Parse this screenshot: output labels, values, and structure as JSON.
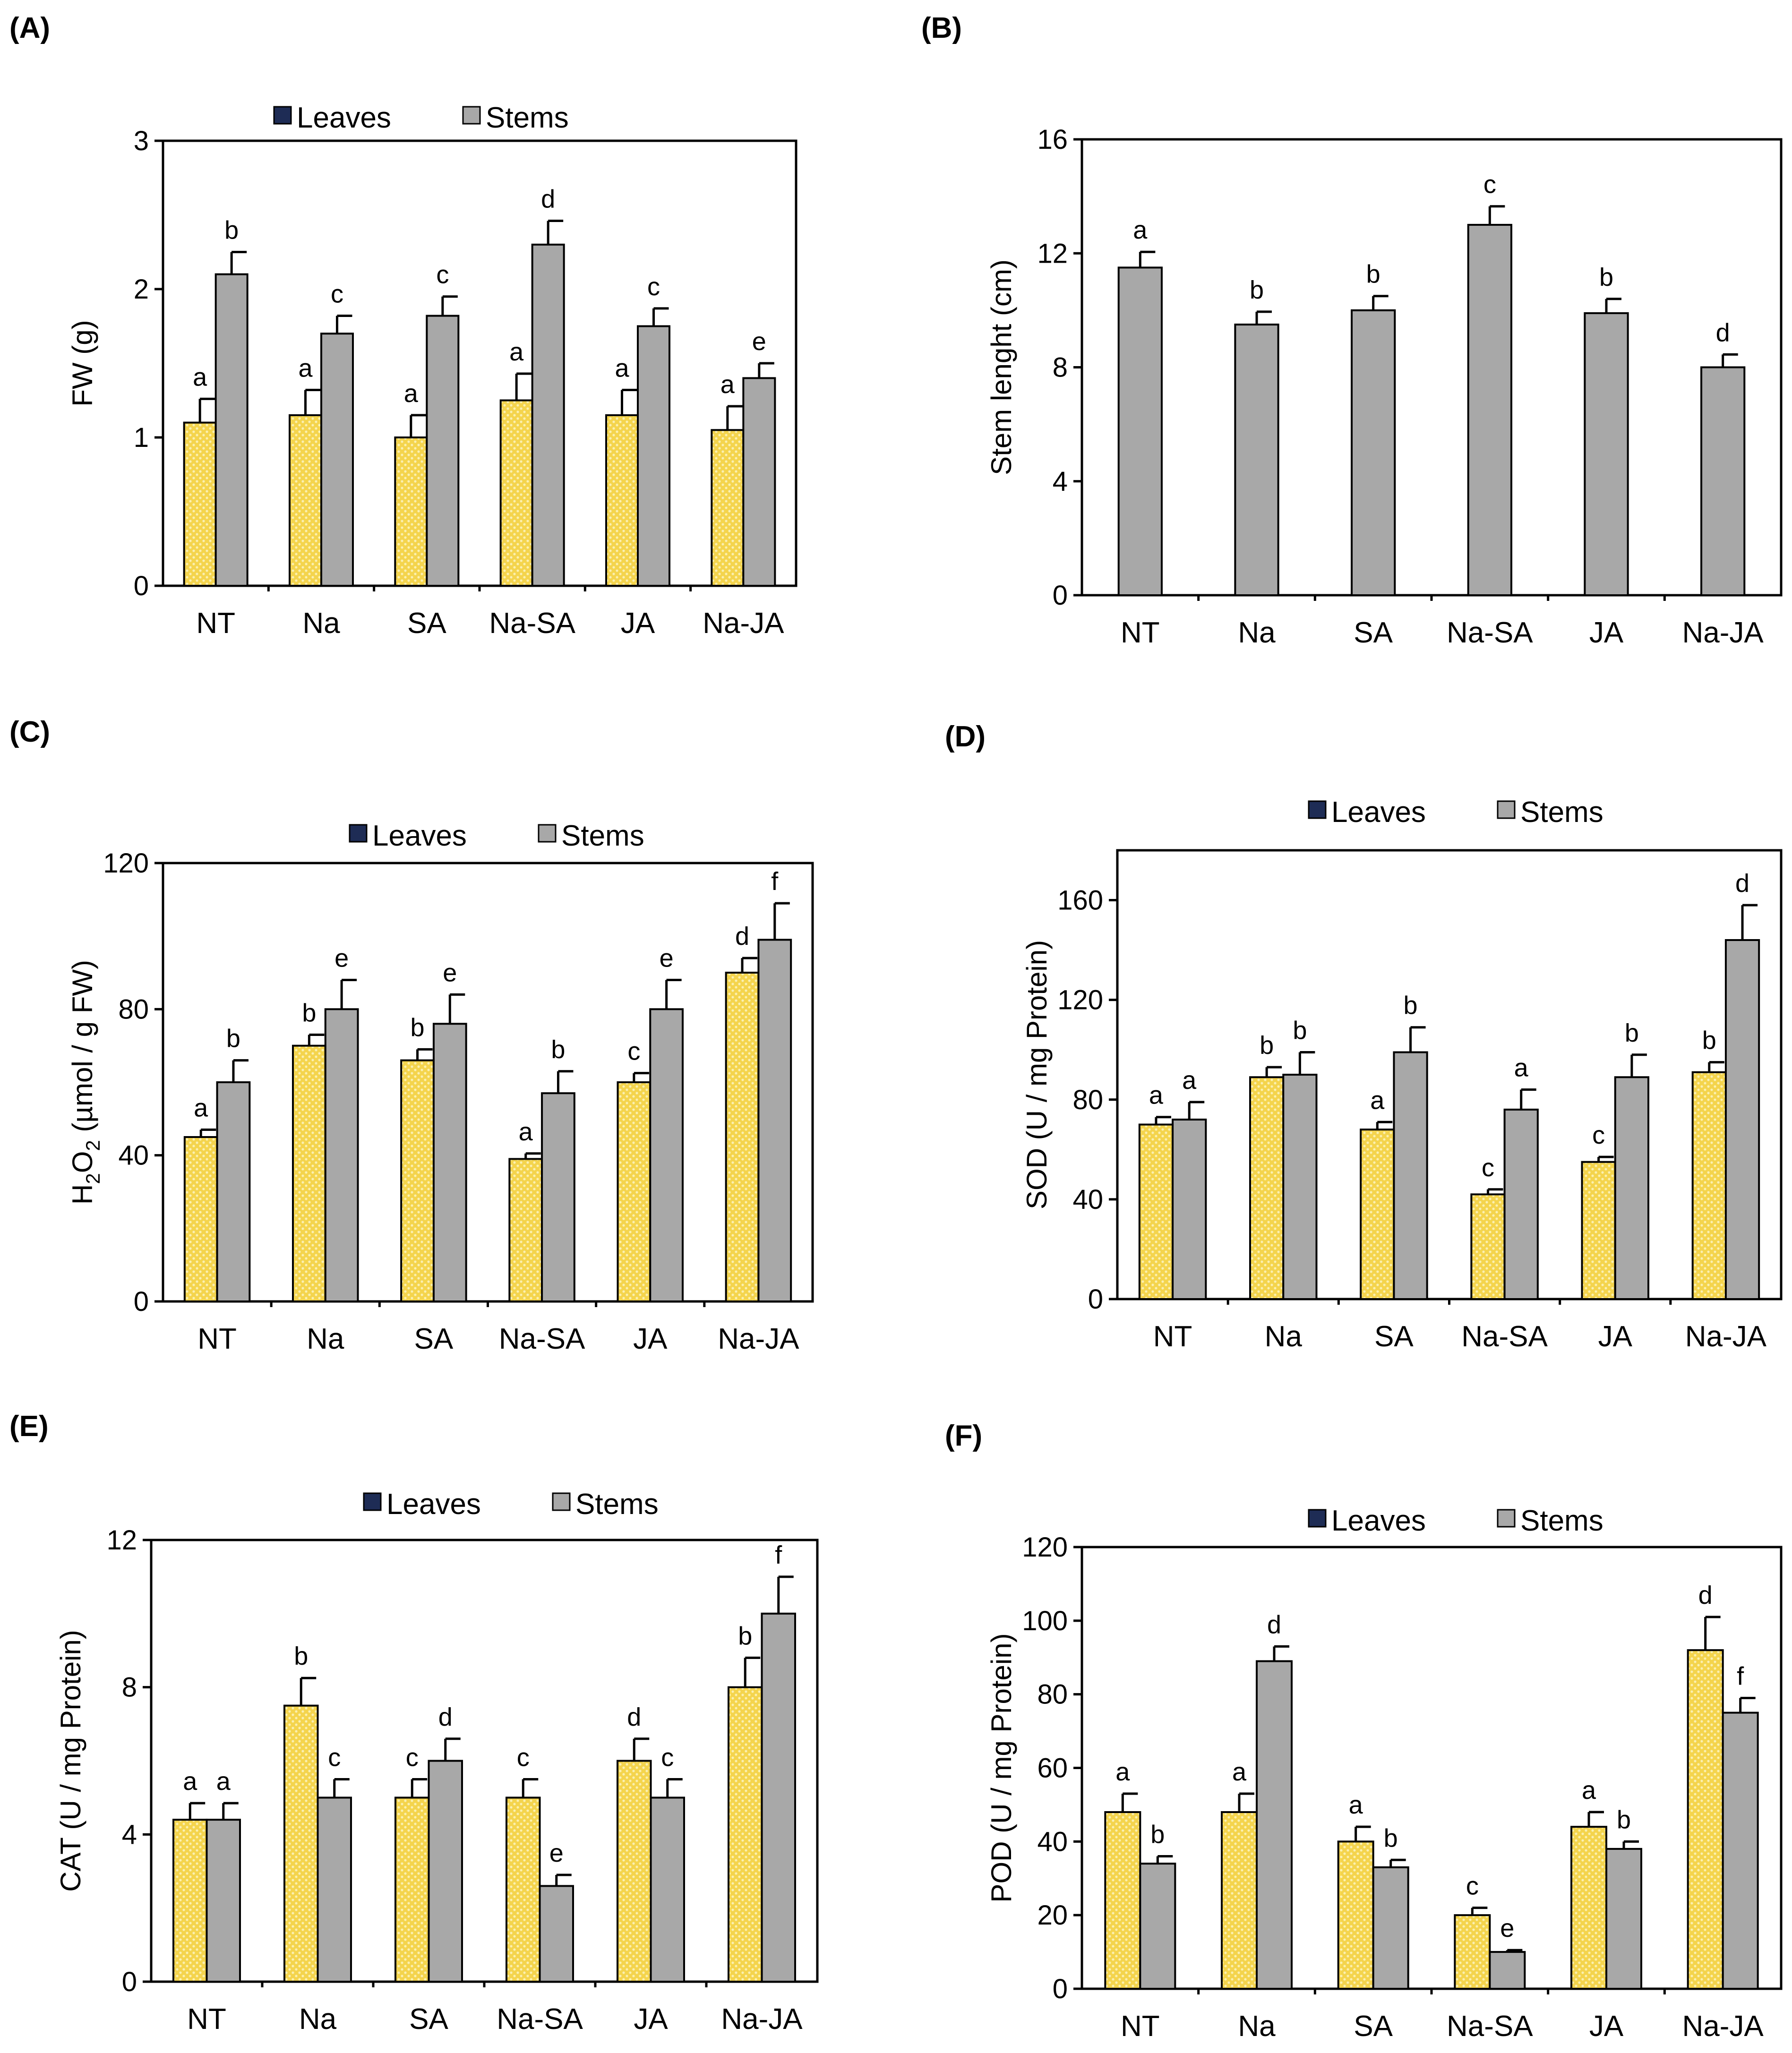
{
  "colors": {
    "leaves_fill": "#f4d44d",
    "leaves_dot": "#fbf0b0",
    "stems_fill": "#a8a8a8",
    "legend_leaves_swatch": "#1e2c55",
    "legend_stems_swatch": "#a8a8a8",
    "axis": "#000000",
    "background": "#ffffff"
  },
  "chart_data": [
    {
      "panel": "(A)",
      "type": "bar",
      "categories": [
        "NT",
        "Na",
        "SA",
        "Na-SA",
        "JA",
        "Na-JA"
      ],
      "ylabel": "FW (g)",
      "ylim": [
        0,
        3
      ],
      "yticks": [
        "0",
        "1",
        "2",
        "3"
      ],
      "legend": [
        "Leaves",
        "Stems"
      ],
      "series": [
        {
          "name": "Leaves",
          "values": [
            1.1,
            1.15,
            1.0,
            1.25,
            1.15,
            1.05
          ],
          "errors": [
            0.16,
            0.17,
            0.15,
            0.18,
            0.17,
            0.16
          ],
          "letters": [
            "a",
            "a",
            "a",
            "a",
            "a",
            "a"
          ]
        },
        {
          "name": "Stems",
          "values": [
            2.1,
            1.7,
            1.82,
            2.3,
            1.75,
            1.4
          ],
          "errors": [
            0.15,
            0.12,
            0.13,
            0.16,
            0.12,
            0.1
          ],
          "letters": [
            "b",
            "c",
            "c",
            "d",
            "c",
            "e"
          ]
        }
      ]
    },
    {
      "panel": "(B)",
      "type": "bar",
      "categories": [
        "NT",
        "Na",
        "SA",
        "Na-SA",
        "JA",
        "Na-JA"
      ],
      "ylabel": "Stem lenght (cm)",
      "ylim": [
        0,
        16
      ],
      "yticks": [
        "0",
        "4",
        "8",
        "12",
        "16"
      ],
      "legend": [],
      "series": [
        {
          "name": "Stems",
          "values": [
            11.5,
            9.5,
            10.0,
            13.0,
            9.9,
            8.0
          ],
          "errors": [
            0.55,
            0.45,
            0.5,
            0.65,
            0.5,
            0.45
          ],
          "letters": [
            "a",
            "b",
            "b",
            "c",
            "b",
            "d"
          ]
        }
      ]
    },
    {
      "panel": "(C)",
      "type": "bar",
      "categories": [
        "NT",
        "Na",
        "SA",
        "Na-SA",
        "JA",
        "Na-JA"
      ],
      "ylabel": "H₂O₂ (µmol / g FW)",
      "ylabel_main": "H",
      "ylabel_sub1": "2",
      "ylabel_mid": "O",
      "ylabel_sub2": "2",
      "ylabel_tail": " (µmol / g FW)",
      "ylim": [
        0,
        120
      ],
      "yticks": [
        "0",
        "40",
        "80",
        "120"
      ],
      "legend": [
        "Leaves",
        "Stems"
      ],
      "series": [
        {
          "name": "Leaves",
          "values": [
            45,
            70,
            66,
            39,
            60,
            90
          ],
          "errors": [
            2,
            3,
            3,
            1.5,
            2.5,
            4
          ],
          "letters": [
            "a",
            "b",
            "b",
            "a",
            "c",
            "d"
          ]
        },
        {
          "name": "Stems",
          "values": [
            60,
            80,
            76,
            57,
            80,
            99
          ],
          "errors": [
            6,
            8,
            8,
            6,
            8,
            10
          ],
          "letters": [
            "b",
            "e",
            "e",
            "b",
            "e",
            "f"
          ]
        }
      ]
    },
    {
      "panel": "(D)",
      "type": "bar",
      "categories": [
        "NT",
        "Na",
        "SA",
        "Na-SA",
        "JA",
        "Na-JA"
      ],
      "ylabel": "SOD (U / mg Protein)",
      "ylim": [
        0,
        180
      ],
      "yticks": [
        "0",
        "40",
        "80",
        "120",
        "160"
      ],
      "legend": [
        "Leaves",
        "Stems"
      ],
      "series": [
        {
          "name": "Leaves",
          "values": [
            70,
            89,
            68,
            42,
            55,
            91
          ],
          "errors": [
            3,
            4,
            3,
            2,
            2,
            4
          ],
          "letters": [
            "a",
            "b",
            "a",
            "c",
            "c",
            "b"
          ]
        },
        {
          "name": "Stems",
          "values": [
            72,
            90,
            99,
            76,
            89,
            144
          ],
          "errors": [
            7,
            9,
            10,
            8,
            9,
            14
          ],
          "letters": [
            "a",
            "b",
            "b",
            "a",
            "b",
            "d"
          ]
        }
      ]
    },
    {
      "panel": "(E)",
      "type": "bar",
      "categories": [
        "NT",
        "Na",
        "SA",
        "Na-SA",
        "JA",
        "Na-JA"
      ],
      "ylabel": "CAT (U / mg Protein)",
      "ylim": [
        0,
        12
      ],
      "yticks": [
        "0",
        "4",
        "8",
        "12"
      ],
      "legend": [
        "Leaves",
        "Stems"
      ],
      "series": [
        {
          "name": "Leaves",
          "values": [
            4.4,
            7.5,
            5.0,
            5.0,
            6.0,
            8.0
          ],
          "errors": [
            0.45,
            0.75,
            0.5,
            0.5,
            0.6,
            0.8
          ],
          "letters": [
            "a",
            "b",
            "c",
            "c",
            "d",
            "b"
          ]
        },
        {
          "name": "Stems",
          "values": [
            4.4,
            5.0,
            6.0,
            2.6,
            5.0,
            10.0
          ],
          "errors": [
            0.45,
            0.5,
            0.6,
            0.3,
            0.5,
            1.0
          ],
          "letters": [
            "a",
            "c",
            "d",
            "e",
            "c",
            "f"
          ]
        }
      ]
    },
    {
      "panel": "(F)",
      "type": "bar",
      "categories": [
        "NT",
        "Na",
        "SA",
        "Na-SA",
        "JA",
        "Na-JA"
      ],
      "ylabel": "POD (U / mg Protein)",
      "ylim": [
        0,
        120
      ],
      "yticks": [
        "0",
        "20",
        "40",
        "60",
        "80",
        "100",
        "120"
      ],
      "legend": [
        "Leaves",
        "Stems"
      ],
      "series": [
        {
          "name": "Leaves",
          "values": [
            48,
            48,
            40,
            20,
            44,
            92
          ],
          "errors": [
            5,
            5,
            4,
            2,
            4,
            9
          ],
          "letters": [
            "a",
            "a",
            "a",
            "c",
            "a",
            "d"
          ]
        },
        {
          "name": "Stems",
          "values": [
            34,
            89,
            33,
            10,
            38,
            75
          ],
          "errors": [
            2,
            4,
            2,
            0.5,
            2,
            4
          ],
          "letters": [
            "b",
            "d",
            "b",
            "e",
            "b",
            "f"
          ]
        }
      ]
    }
  ]
}
